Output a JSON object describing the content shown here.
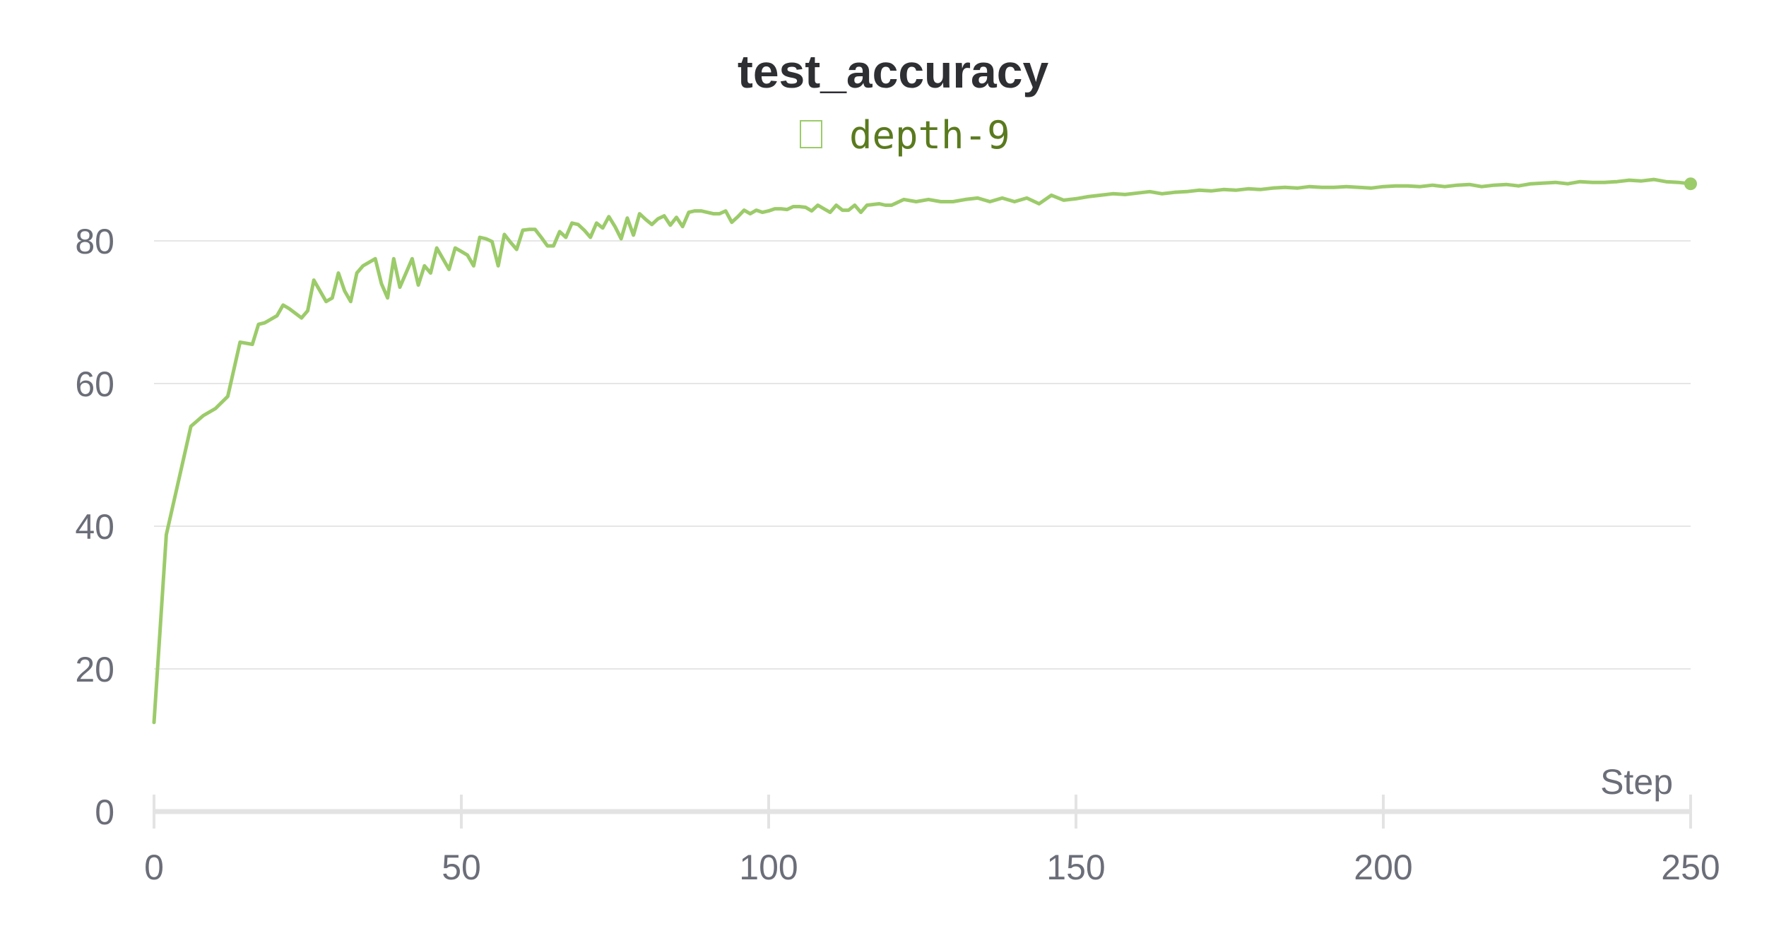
{
  "chart_data": {
    "type": "line",
    "title": "test_accuracy",
    "xlabel": "Step",
    "ylabel": "",
    "xlim": [
      0,
      250
    ],
    "ylim": [
      0,
      93
    ],
    "x_ticks": [
      0,
      50,
      100,
      150,
      200,
      250
    ],
    "y_ticks": [
      0,
      20,
      40,
      60,
      80
    ],
    "x_tick_labels": [
      "0",
      "50",
      "100",
      "150",
      "200",
      "250"
    ],
    "y_tick_labels": [
      "0",
      "20",
      "40",
      "60",
      "80"
    ],
    "grid": true,
    "legend_position": "top-center",
    "line_color": "#9ccb6a",
    "legend_text_color": "#5a7a1e",
    "grid_color": "#e6e6e6",
    "axis_color": "#e3e3e3",
    "series": [
      {
        "name": "depth-9",
        "x": [
          0,
          2,
          6,
          8,
          10,
          12,
          14,
          16,
          17,
          18,
          20,
          21,
          22,
          24,
          25,
          26,
          27,
          28,
          29,
          30,
          31,
          32,
          33,
          34,
          36,
          37,
          38,
          39,
          40,
          41,
          42,
          43,
          44,
          45,
          46,
          47,
          48,
          49,
          50,
          51,
          52,
          53,
          54,
          55,
          56,
          57,
          58,
          59,
          60,
          61,
          62,
          63,
          64,
          65,
          66,
          67,
          68,
          69,
          70,
          71,
          72,
          73,
          74,
          75,
          76,
          77,
          78,
          79,
          80,
          81,
          82,
          83,
          84,
          85,
          86,
          87,
          88,
          89,
          90,
          91,
          92,
          93,
          94,
          95,
          96,
          97,
          98,
          99,
          100,
          101,
          102,
          103,
          104,
          105,
          106,
          107,
          108,
          109,
          110,
          111,
          112,
          113,
          114,
          115,
          116,
          117,
          118,
          119,
          120,
          122,
          124,
          126,
          128,
          130,
          132,
          134,
          136,
          138,
          140,
          142,
          144,
          146,
          148,
          150,
          152,
          154,
          156,
          158,
          160,
          162,
          164,
          166,
          168,
          170,
          172,
          174,
          176,
          178,
          180,
          182,
          184,
          186,
          188,
          190,
          192,
          194,
          196,
          198,
          200,
          202,
          204,
          206,
          208,
          210,
          212,
          214,
          216,
          218,
          220,
          222,
          224,
          226,
          228,
          230,
          232,
          234,
          236,
          238,
          240,
          242,
          244,
          246,
          248,
          250
        ],
        "values": [
          12.5,
          38.8,
          54,
          55.5,
          56.5,
          58.2,
          65.8,
          65.5,
          68.3,
          68.5,
          69.5,
          71,
          70.5,
          69.2,
          70.2,
          74.5,
          73,
          71.5,
          72,
          75.5,
          73,
          71.5,
          75.5,
          76.5,
          77.5,
          74,
          72,
          77.5,
          73.5,
          75.5,
          77.5,
          73.8,
          76.5,
          75.5,
          79,
          77.5,
          76,
          79,
          78.5,
          78,
          76.5,
          80.5,
          80.3,
          79.9,
          76.5,
          80.9,
          79.8,
          78.8,
          81.5,
          81.6,
          81.6,
          80.5,
          79.3,
          79.3,
          81.3,
          80.5,
          82.5,
          82.3,
          81.5,
          80.5,
          82.5,
          81.8,
          83.4,
          82,
          80.3,
          83.2,
          80.8,
          83.8,
          83,
          82.3,
          83.1,
          83.5,
          82.2,
          83.3,
          82,
          84,
          84.2,
          84.2,
          84,
          83.8,
          83.8,
          84.2,
          82.6,
          83.4,
          84.3,
          83.8,
          84.3,
          84,
          84.2,
          84.5,
          84.5,
          84.4,
          84.8,
          84.8,
          84.7,
          84.2,
          85,
          84.5,
          84,
          85,
          84.3,
          84.3,
          85,
          84,
          85,
          85.1,
          85.2,
          85,
          85,
          85.8,
          85.5,
          85.8,
          85.5,
          85.5,
          85.8,
          86,
          85.5,
          86,
          85.5,
          86,
          85.2,
          86.4,
          85.7,
          85.9,
          86.2,
          86.4,
          86.6,
          86.5,
          86.7,
          86.9,
          86.6,
          86.8,
          86.9,
          87.1,
          87,
          87.2,
          87.1,
          87.3,
          87.2,
          87.4,
          87.5,
          87.4,
          87.6,
          87.5,
          87.5,
          87.6,
          87.5,
          87.4,
          87.6,
          87.7,
          87.7,
          87.6,
          87.8,
          87.6,
          87.8,
          87.9,
          87.6,
          87.8,
          87.9,
          87.7,
          88,
          88.1,
          88.2,
          88,
          88.3,
          88.2,
          88.2,
          88.3,
          88.5,
          88.4,
          88.6,
          88.3,
          88.2,
          88
        ]
      }
    ]
  }
}
